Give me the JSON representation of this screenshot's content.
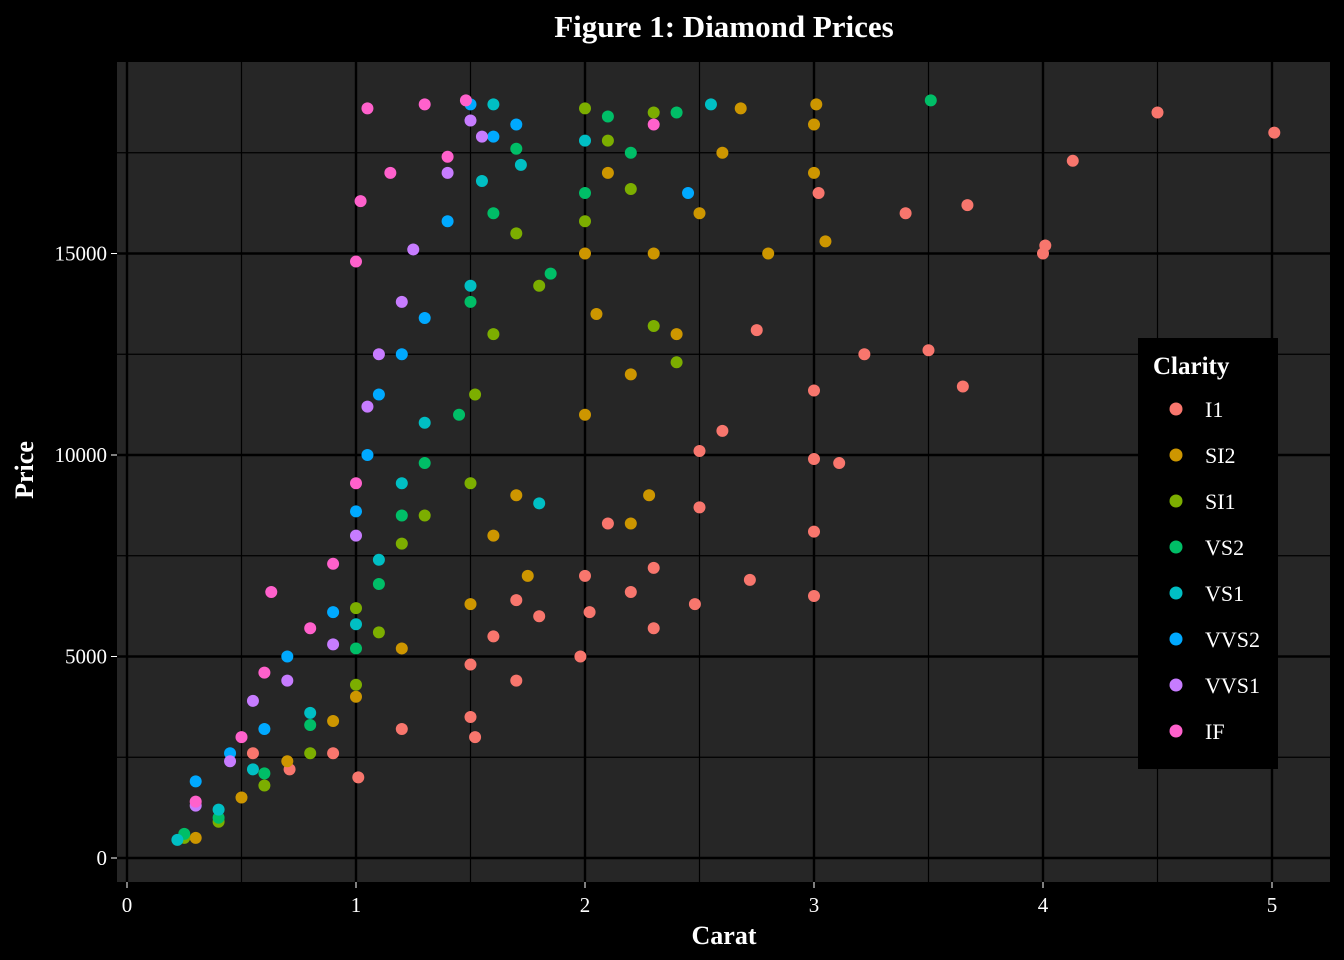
{
  "chart_data": {
    "type": "scatter",
    "title": "Figure 1: Diamond Prices",
    "xlabel": "Carat",
    "ylabel": "Price",
    "xlim": [
      0,
      5
    ],
    "ylim": [
      0,
      18823
    ],
    "x_ticks": [
      0,
      1,
      2,
      3,
      4,
      5
    ],
    "y_ticks": [
      0,
      5000,
      10000,
      15000
    ],
    "grid": true,
    "legend": {
      "title": "Clarity",
      "placement": "right-inside",
      "entries": [
        "I1",
        "SI2",
        "SI1",
        "VS2",
        "VS1",
        "VVS2",
        "VVS1",
        "IF"
      ]
    },
    "colors": {
      "I1": "#F8766D",
      "SI2": "#CD9600",
      "SI1": "#7CAE00",
      "VS2": "#00BE67",
      "VS1": "#00BFC4",
      "VVS2": "#00A9FF",
      "VVS1": "#C77CFF",
      "IF": "#FF61CC",
      "panel": "#262626",
      "background": "#000000"
    },
    "series": [
      {
        "name": "I1",
        "points": [
          [
            0.55,
            2600
          ],
          [
            0.71,
            2200
          ],
          [
            0.9,
            2600
          ],
          [
            1.01,
            2000
          ],
          [
            1.2,
            3200
          ],
          [
            1.5,
            4800
          ],
          [
            1.52,
            3000
          ],
          [
            1.5,
            3500
          ],
          [
            1.6,
            5500
          ],
          [
            1.7,
            4400
          ],
          [
            1.7,
            6400
          ],
          [
            1.8,
            6000
          ],
          [
            1.98,
            5000
          ],
          [
            2.0,
            7000
          ],
          [
            2.02,
            6100
          ],
          [
            2.1,
            8300
          ],
          [
            2.2,
            6600
          ],
          [
            2.3,
            7200
          ],
          [
            2.3,
            5700
          ],
          [
            2.5,
            8700
          ],
          [
            2.48,
            6300
          ],
          [
            2.5,
            10100
          ],
          [
            2.6,
            10600
          ],
          [
            2.72,
            6900
          ],
          [
            2.75,
            13100
          ],
          [
            3.0,
            6500
          ],
          [
            3.0,
            8100
          ],
          [
            3.0,
            9900
          ],
          [
            3.0,
            11600
          ],
          [
            3.02,
            16500
          ],
          [
            3.11,
            9800
          ],
          [
            3.22,
            12500
          ],
          [
            3.4,
            16000
          ],
          [
            3.5,
            12600
          ],
          [
            3.65,
            11700
          ],
          [
            3.67,
            16200
          ],
          [
            4.0,
            15000
          ],
          [
            4.01,
            15200
          ],
          [
            4.13,
            17300
          ],
          [
            4.5,
            18500
          ],
          [
            5.01,
            18000
          ]
        ]
      },
      {
        "name": "SI2",
        "points": [
          [
            0.3,
            500
          ],
          [
            0.5,
            1500
          ],
          [
            0.7,
            2400
          ],
          [
            0.9,
            3400
          ],
          [
            1.0,
            4000
          ],
          [
            1.2,
            5200
          ],
          [
            1.5,
            6300
          ],
          [
            1.6,
            8000
          ],
          [
            1.7,
            9000
          ],
          [
            1.75,
            7000
          ],
          [
            2.0,
            11000
          ],
          [
            2.0,
            15000
          ],
          [
            2.05,
            13500
          ],
          [
            2.1,
            17000
          ],
          [
            2.2,
            12000
          ],
          [
            2.3,
            15000
          ],
          [
            2.4,
            13000
          ],
          [
            2.5,
            16000
          ],
          [
            2.6,
            17500
          ],
          [
            2.68,
            18600
          ],
          [
            2.8,
            15000
          ],
          [
            3.0,
            17000
          ],
          [
            3.0,
            18200
          ],
          [
            3.01,
            18700
          ],
          [
            3.05,
            15300
          ],
          [
            2.2,
            8300
          ],
          [
            2.28,
            9000
          ]
        ]
      },
      {
        "name": "SI1",
        "points": [
          [
            0.25,
            500
          ],
          [
            0.4,
            900
          ],
          [
            0.6,
            1800
          ],
          [
            0.8,
            2600
          ],
          [
            1.0,
            4300
          ],
          [
            1.0,
            6200
          ],
          [
            1.1,
            5600
          ],
          [
            1.2,
            7800
          ],
          [
            1.3,
            8500
          ],
          [
            1.5,
            9300
          ],
          [
            1.52,
            11500
          ],
          [
            1.6,
            13000
          ],
          [
            1.7,
            15500
          ],
          [
            1.8,
            14200
          ],
          [
            2.0,
            15800
          ],
          [
            2.1,
            17800
          ],
          [
            2.2,
            16600
          ],
          [
            2.3,
            13200
          ],
          [
            2.4,
            12300
          ],
          [
            2.0,
            18600
          ],
          [
            2.3,
            18500
          ]
        ]
      },
      {
        "name": "VS2",
        "points": [
          [
            0.25,
            600
          ],
          [
            0.4,
            1000
          ],
          [
            0.6,
            2100
          ],
          [
            0.8,
            3300
          ],
          [
            1.0,
            5200
          ],
          [
            1.1,
            6800
          ],
          [
            1.2,
            8500
          ],
          [
            1.3,
            9800
          ],
          [
            1.45,
            11000
          ],
          [
            1.5,
            13800
          ],
          [
            1.6,
            16000
          ],
          [
            1.7,
            17600
          ],
          [
            1.85,
            14500
          ],
          [
            2.0,
            16500
          ],
          [
            2.1,
            18400
          ],
          [
            2.2,
            17500
          ],
          [
            2.4,
            18500
          ],
          [
            3.51,
            18800
          ]
        ]
      },
      {
        "name": "VS1",
        "points": [
          [
            0.22,
            450
          ],
          [
            0.4,
            1200
          ],
          [
            0.55,
            2200
          ],
          [
            0.8,
            3600
          ],
          [
            1.0,
            5800
          ],
          [
            1.1,
            7400
          ],
          [
            1.2,
            9300
          ],
          [
            1.3,
            10800
          ],
          [
            1.5,
            14200
          ],
          [
            1.55,
            16800
          ],
          [
            1.6,
            18700
          ],
          [
            1.72,
            17200
          ],
          [
            1.8,
            8800
          ],
          [
            2.0,
            17800
          ],
          [
            2.55,
            18700
          ]
        ]
      },
      {
        "name": "VVS2",
        "points": [
          [
            0.3,
            1900
          ],
          [
            0.45,
            2600
          ],
          [
            0.6,
            3200
          ],
          [
            0.7,
            5000
          ],
          [
            0.9,
            6100
          ],
          [
            1.0,
            8600
          ],
          [
            1.05,
            10000
          ],
          [
            1.1,
            11500
          ],
          [
            1.2,
            12500
          ],
          [
            1.3,
            13400
          ],
          [
            1.4,
            15800
          ],
          [
            1.5,
            18700
          ],
          [
            1.6,
            17900
          ],
          [
            1.7,
            18200
          ],
          [
            2.45,
            16500
          ]
        ]
      },
      {
        "name": "VVS1",
        "points": [
          [
            0.3,
            1300
          ],
          [
            0.45,
            2400
          ],
          [
            0.55,
            3900
          ],
          [
            0.7,
            4400
          ],
          [
            0.9,
            5300
          ],
          [
            1.0,
            8000
          ],
          [
            1.05,
            11200
          ],
          [
            1.1,
            12500
          ],
          [
            1.2,
            13800
          ],
          [
            1.25,
            15100
          ],
          [
            1.4,
            17000
          ],
          [
            1.5,
            18300
          ],
          [
            1.55,
            17900
          ]
        ]
      },
      {
        "name": "IF",
        "points": [
          [
            0.3,
            1400
          ],
          [
            0.5,
            3000
          ],
          [
            0.6,
            4600
          ],
          [
            0.63,
            6600
          ],
          [
            0.8,
            5700
          ],
          [
            0.9,
            7300
          ],
          [
            1.0,
            9300
          ],
          [
            1.0,
            14800
          ],
          [
            1.02,
            16300
          ],
          [
            1.05,
            18600
          ],
          [
            1.15,
            17000
          ],
          [
            1.3,
            18700
          ],
          [
            1.4,
            17400
          ],
          [
            1.48,
            18800
          ],
          [
            2.3,
            18200
          ]
        ]
      }
    ]
  }
}
